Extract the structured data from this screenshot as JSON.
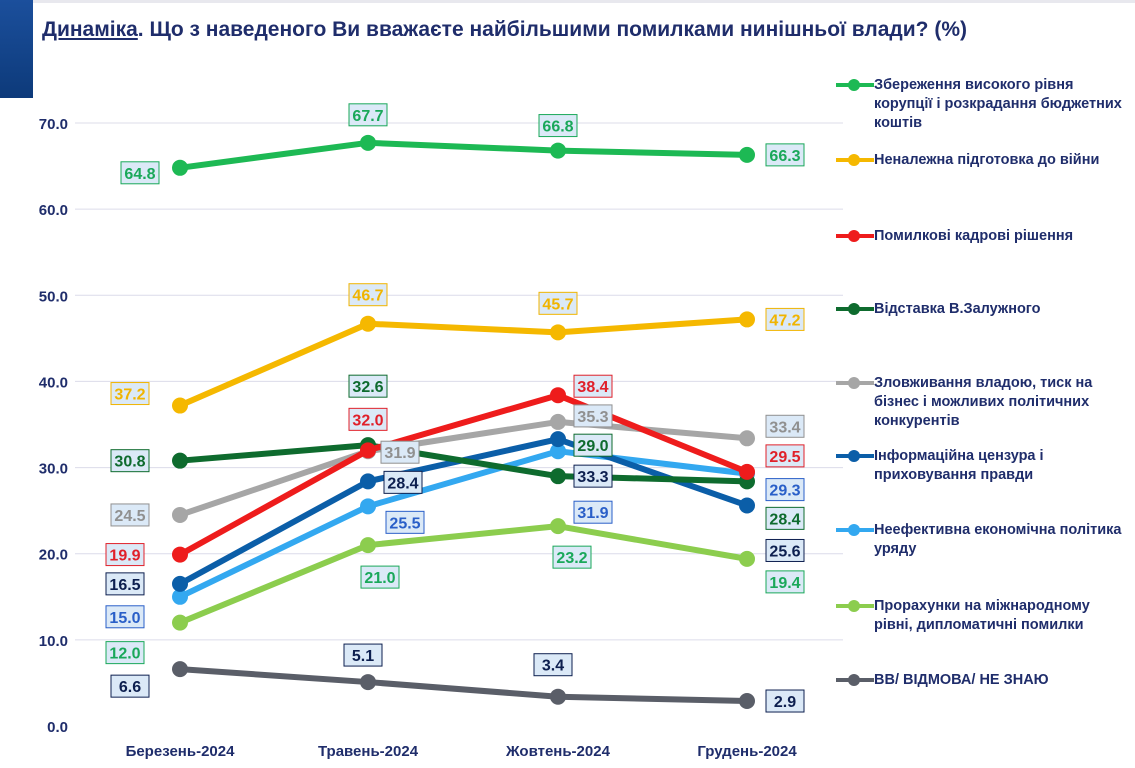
{
  "title": {
    "underlined": "Динаміка",
    "rest": ". Що з наведеного Ви вважаєте найбільшими помилками нинішньої влади? (%)"
  },
  "chart_data": {
    "type": "line",
    "categories": [
      "Березень-2024",
      "Травень-2024",
      "Жовтень-2024",
      "Грудень-2024"
    ],
    "ylim": [
      0,
      70
    ],
    "yticks": [
      "0.0",
      "10.0",
      "20.0",
      "30.0",
      "40.0",
      "50.0",
      "60.0",
      "70.0"
    ],
    "grid": true,
    "legend": "right",
    "series": [
      {
        "name": "Збереження високого рівня корупції і розкрадання бюджетних коштів",
        "color": "#1db954",
        "label_color": "#1aa85a",
        "values": [
          64.8,
          67.7,
          66.8,
          66.3
        ]
      },
      {
        "name": "Неналежна підготовка до війни",
        "color": "#f5b800",
        "label_color": "#f0b400",
        "values": [
          37.2,
          46.7,
          45.7,
          47.2
        ]
      },
      {
        "name": "Помилкові кадрові рішення",
        "color": "#ee1c1c",
        "label_color": "#e0202a",
        "values": [
          19.9,
          32.0,
          38.4,
          29.5
        ]
      },
      {
        "name": "Відставка В.Залужного",
        "color": "#0e6b2e",
        "label_color": "#0e6b2e",
        "values": [
          30.8,
          32.6,
          29.0,
          28.4
        ]
      },
      {
        "name": "Зловживання владою, тиск на бізнес і можливих політичних конкурентів",
        "color": "#a6a6a6",
        "label_color": "#909090",
        "values": [
          24.5,
          31.9,
          35.3,
          33.4
        ]
      },
      {
        "name": "Інформаційна цензура і приховування правди",
        "color": "#0b5ea8",
        "label_color": "#0d1f4f",
        "values": [
          16.5,
          28.4,
          33.3,
          25.6
        ]
      },
      {
        "name": "Неефективна економічна політика уряду",
        "color": "#33a8f0",
        "label_color": "#2a5fc8",
        "values": [
          15.0,
          25.5,
          31.9,
          29.3
        ]
      },
      {
        "name": "Прорахунки на міжнародному рівні, дипломатичні помилки",
        "color": "#8ccd4e",
        "label_color": "#1aa85a",
        "values": [
          12.0,
          21.0,
          23.2,
          19.4
        ]
      },
      {
        "name": "ВВ/ ВІДМОВА/ НЕ ЗНАЮ",
        "color": "#5a5e68",
        "label_color": "#0d1f4f",
        "values": [
          6.6,
          5.1,
          3.4,
          2.9
        ]
      }
    ]
  }
}
